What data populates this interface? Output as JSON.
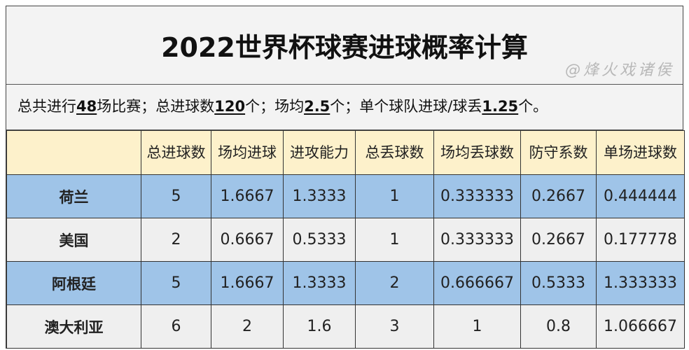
{
  "title": "2022世界杯球赛进球概率计算",
  "summary": {
    "p1": "总共进行",
    "games": "48",
    "p2": "场比赛；总进球数",
    "goals": "120",
    "p3": "个；场均",
    "avg": "2.5",
    "p4": "个；单个球队进球/球丢",
    "team_avg": "1.25",
    "p5": "个。"
  },
  "headers": [
    "",
    "总进球数",
    "场均进球",
    "进攻能力",
    "总丢球数",
    "场均丢球数",
    "防守系数",
    "单场进球数"
  ],
  "rows": [
    [
      "荷兰",
      "5",
      "1.6667",
      "1.3333",
      "1",
      "0.333333",
      "0.2667",
      "0.444444"
    ],
    [
      "美国",
      "2",
      "0.6667",
      "0.5333",
      "1",
      "0.333333",
      "0.2667",
      "0.177778"
    ],
    [
      "阿根廷",
      "5",
      "1.6667",
      "1.3333",
      "2",
      "0.666667",
      "0.5333",
      "1.333333"
    ],
    [
      "澳大利亚",
      "6",
      "2",
      "1.6",
      "3",
      "1",
      "0.8",
      "1.066667"
    ]
  ],
  "watermark": "@烽火戏诸侯",
  "colors": {
    "header": "#fdf1cb",
    "blue_row": "#9fc4e8",
    "grey_row": "#efefef"
  }
}
